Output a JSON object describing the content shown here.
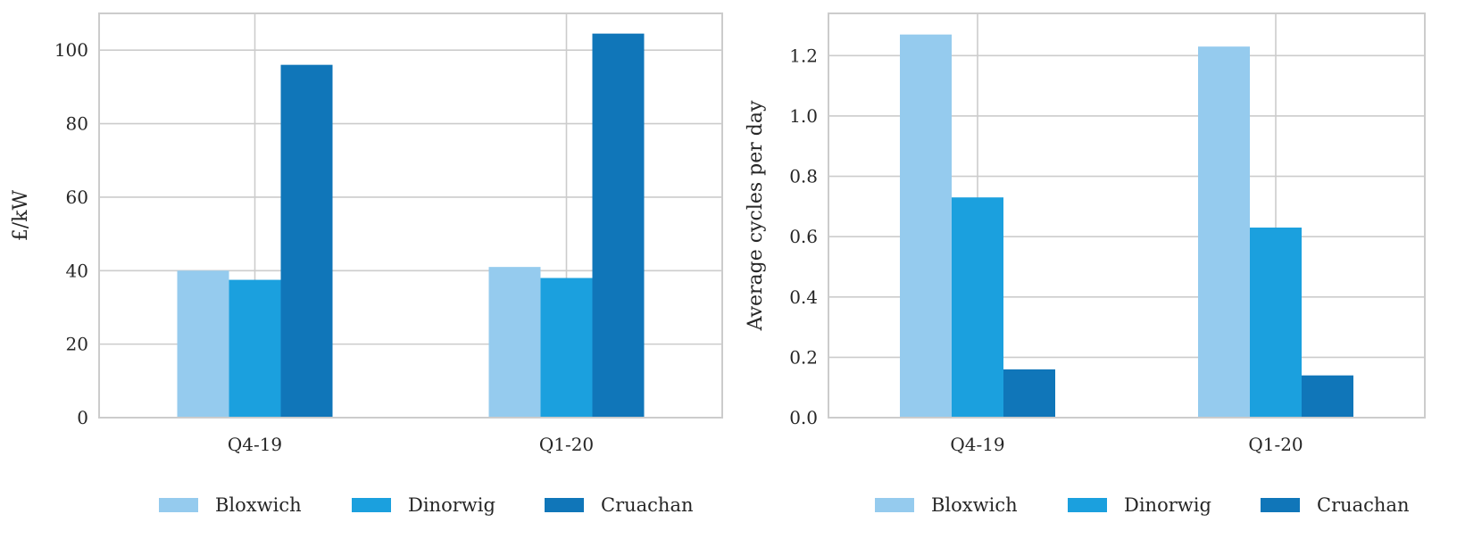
{
  "chart_data": [
    {
      "type": "bar",
      "categories": [
        "Q4-19",
        "Q1-20"
      ],
      "series": [
        {
          "name": "Bloxwich",
          "values": [
            40,
            41
          ]
        },
        {
          "name": "Dinorwig",
          "values": [
            37.5,
            38
          ]
        },
        {
          "name": "Cruachan",
          "values": [
            96,
            104.5
          ]
        }
      ],
      "ylabel": "£/kW",
      "xlabel": "",
      "ylim": [
        0,
        110
      ],
      "yticks": [
        0,
        20,
        40,
        60,
        80,
        100
      ],
      "grid": true,
      "legend": "bottom"
    },
    {
      "type": "bar",
      "categories": [
        "Q4-19",
        "Q1-20"
      ],
      "series": [
        {
          "name": "Bloxwich",
          "values": [
            1.27,
            1.23
          ]
        },
        {
          "name": "Dinorwig",
          "values": [
            0.73,
            0.63
          ]
        },
        {
          "name": "Cruachan",
          "values": [
            0.16,
            0.14
          ]
        }
      ],
      "ylabel": "Average cycles per day",
      "xlabel": "",
      "ylim": [
        0,
        1.34
      ],
      "yticks": [
        "0.0",
        "0.2",
        "0.4",
        "0.6",
        "0.8",
        "1.0",
        "1.2"
      ],
      "grid": true,
      "legend": "bottom"
    }
  ],
  "colors": {
    "Bloxwich": "#95cbee",
    "Dinorwig": "#1ba0de",
    "Cruachan": "#1076b9",
    "grid": "#cccccc",
    "text": "#262626"
  }
}
